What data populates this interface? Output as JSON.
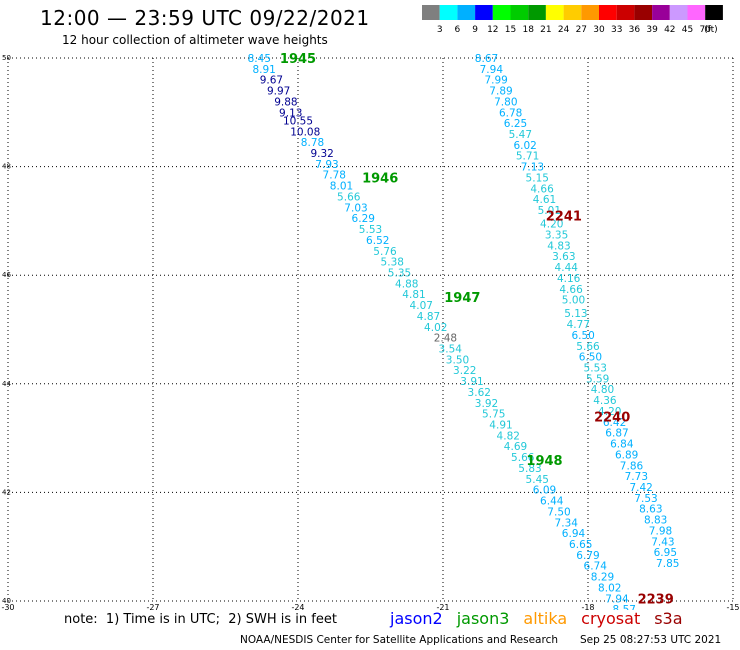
{
  "header": {
    "title": "12:00 — 23:59 UTC 09/22/2021",
    "subtitle": "12 hour collection of altimeter wave heights"
  },
  "legend": {
    "unit": "(ft)",
    "bins": [
      {
        "label": "3",
        "color": "#7f7f7f"
      },
      {
        "label": "6",
        "color": "#00ffff"
      },
      {
        "label": "9",
        "color": "#00b0ff"
      },
      {
        "label": "12",
        "color": "#0000ff"
      },
      {
        "label": "15",
        "color": "#00ff00"
      },
      {
        "label": "18",
        "color": "#00cc00"
      },
      {
        "label": "21",
        "color": "#009900"
      },
      {
        "label": "24",
        "color": "#ffff00"
      },
      {
        "label": "27",
        "color": "#ffcc00"
      },
      {
        "label": "30",
        "color": "#ff9900"
      },
      {
        "label": "33",
        "color": "#ff0000"
      },
      {
        "label": "36",
        "color": "#cc0000"
      },
      {
        "label": "39",
        "color": "#990000"
      },
      {
        "label": "42",
        "color": "#990099"
      },
      {
        "label": "45",
        "color": "#cc99ff"
      },
      {
        "label": "70",
        "color": "#ff66ff"
      },
      {
        "label": "",
        "color": "#000000"
      }
    ]
  },
  "footer": {
    "note": "note:  1) Time is in UTC;  2) SWH is in feet",
    "missions": [
      {
        "name": "jason2",
        "color": "#0000ff"
      },
      {
        "name": "jason3",
        "color": "#009900"
      },
      {
        "name": "altika",
        "color": "#ff9900"
      },
      {
        "name": "cryosat",
        "color": "#cc0000"
      },
      {
        "name": "s3a",
        "color": "#990000"
      }
    ],
    "credit": "NOAA/NESDIS Center for Satellite Applications and Research",
    "timestamp": "Sep 25 08:27:53 UTC 2021"
  },
  "chart_data": {
    "type": "scatter",
    "xlim": [
      -30,
      -15
    ],
    "ylim": [
      40,
      50
    ],
    "xticks": [
      -30,
      -27,
      -24,
      -21,
      -18,
      -15
    ],
    "yticks": [
      40,
      42,
      44,
      46,
      48,
      50
    ],
    "grid": true,
    "time_labels": [
      {
        "text": "1945",
        "x": -24.0,
        "y": 50.0,
        "color": "#009900"
      },
      {
        "text": "1946",
        "x": -22.3,
        "y": 47.8,
        "color": "#009900"
      },
      {
        "text": "1947",
        "x": -20.6,
        "y": 45.6,
        "color": "#009900"
      },
      {
        "text": "1948",
        "x": -18.9,
        "y": 42.6,
        "color": "#009900"
      },
      {
        "text": "2241",
        "x": -18.5,
        "y": 47.1,
        "color": "#990000"
      },
      {
        "text": "2240",
        "x": -17.5,
        "y": 43.4,
        "color": "#990000"
      },
      {
        "text": "2239",
        "x": -16.6,
        "y": 40.05,
        "color": "#990000"
      }
    ],
    "series": [
      {
        "name": "jason3",
        "points": [
          {
            "x": -24.8,
            "y": 50.0,
            "v": "8.45"
          },
          {
            "x": -24.7,
            "y": 49.8,
            "v": "8.91"
          },
          {
            "x": -24.55,
            "y": 49.6,
            "v": "9.67"
          },
          {
            "x": -24.4,
            "y": 49.4,
            "v": "9.97"
          },
          {
            "x": -24.25,
            "y": 49.2,
            "v": "9.88"
          },
          {
            "x": -24.15,
            "y": 49.0,
            "v": "9.13"
          },
          {
            "x": -24.0,
            "y": 48.85,
            "v": "10.55"
          },
          {
            "x": -23.85,
            "y": 48.65,
            "v": "10.08"
          },
          {
            "x": -23.7,
            "y": 48.45,
            "v": "8.78"
          },
          {
            "x": -23.5,
            "y": 48.25,
            "v": "9.32"
          },
          {
            "x": -23.4,
            "y": 48.05,
            "v": "7.93"
          },
          {
            "x": -23.25,
            "y": 47.85,
            "v": "7.78"
          },
          {
            "x": -23.1,
            "y": 47.65,
            "v": "8.01"
          },
          {
            "x": -22.95,
            "y": 47.45,
            "v": "5.66"
          },
          {
            "x": -22.8,
            "y": 47.25,
            "v": "7.03"
          },
          {
            "x": -22.65,
            "y": 47.05,
            "v": "6.29"
          },
          {
            "x": -22.5,
            "y": 46.85,
            "v": "5.53"
          },
          {
            "x": -22.35,
            "y": 46.65,
            "v": "6.52"
          },
          {
            "x": -22.2,
            "y": 46.45,
            "v": "5.76"
          },
          {
            "x": -22.05,
            "y": 46.25,
            "v": "5.38"
          },
          {
            "x": -21.9,
            "y": 46.05,
            "v": "5.35"
          },
          {
            "x": -21.75,
            "y": 45.85,
            "v": "4.88"
          },
          {
            "x": -21.6,
            "y": 45.65,
            "v": "4.81"
          },
          {
            "x": -21.45,
            "y": 45.45,
            "v": "4.07"
          },
          {
            "x": -21.3,
            "y": 45.25,
            "v": "4.87"
          },
          {
            "x": -21.15,
            "y": 45.05,
            "v": "4.02"
          },
          {
            "x": -20.95,
            "y": 44.85,
            "v": "2.48"
          },
          {
            "x": -20.85,
            "y": 44.65,
            "v": "3.54"
          },
          {
            "x": -20.7,
            "y": 44.45,
            "v": "3.50"
          },
          {
            "x": -20.55,
            "y": 44.25,
            "v": "3.22"
          },
          {
            "x": -20.4,
            "y": 44.05,
            "v": "3.91"
          },
          {
            "x": -20.25,
            "y": 43.85,
            "v": "3.62"
          },
          {
            "x": -20.1,
            "y": 43.65,
            "v": "3.92"
          },
          {
            "x": -19.95,
            "y": 43.45,
            "v": "5.75"
          },
          {
            "x": -19.8,
            "y": 43.25,
            "v": "4.91"
          },
          {
            "x": -19.65,
            "y": 43.05,
            "v": "4.82"
          },
          {
            "x": -19.5,
            "y": 42.85,
            "v": "4.69"
          },
          {
            "x": -19.35,
            "y": 42.65,
            "v": "5.66"
          },
          {
            "x": -19.2,
            "y": 42.45,
            "v": "5.83"
          },
          {
            "x": -19.05,
            "y": 42.25,
            "v": "5.45"
          },
          {
            "x": -18.9,
            "y": 42.05,
            "v": "6.09"
          },
          {
            "x": -18.75,
            "y": 41.85,
            "v": "6.44"
          },
          {
            "x": -18.6,
            "y": 41.65,
            "v": "7.50"
          },
          {
            "x": -18.45,
            "y": 41.45,
            "v": "7.34"
          },
          {
            "x": -18.3,
            "y": 41.25,
            "v": "6.94"
          },
          {
            "x": -18.15,
            "y": 41.05,
            "v": "6.65"
          },
          {
            "x": -18.0,
            "y": 40.85,
            "v": "6.79"
          },
          {
            "x": -17.85,
            "y": 40.65,
            "v": "6.74"
          },
          {
            "x": -17.7,
            "y": 40.45,
            "v": "8.29"
          },
          {
            "x": -17.55,
            "y": 40.25,
            "v": "8.02"
          },
          {
            "x": -17.4,
            "y": 40.05,
            "v": "7.94"
          },
          {
            "x": -17.25,
            "y": 39.85,
            "v": "8.57"
          }
        ]
      },
      {
        "name": "s3a",
        "points": [
          {
            "x": -20.1,
            "y": 50.0,
            "v": "8.67"
          },
          {
            "x": -20.0,
            "y": 49.8,
            "v": "7.94"
          },
          {
            "x": -19.9,
            "y": 49.6,
            "v": "7.99"
          },
          {
            "x": -19.8,
            "y": 49.4,
            "v": "7.89"
          },
          {
            "x": -19.7,
            "y": 49.2,
            "v": "7.80"
          },
          {
            "x": -19.6,
            "y": 49.0,
            "v": "6.78"
          },
          {
            "x": -19.5,
            "y": 48.8,
            "v": "6.25"
          },
          {
            "x": -19.4,
            "y": 48.6,
            "v": "5.47"
          },
          {
            "x": -19.3,
            "y": 48.4,
            "v": "6.02"
          },
          {
            "x": -19.25,
            "y": 48.2,
            "v": "5.71"
          },
          {
            "x": -19.15,
            "y": 48.0,
            "v": "7.13"
          },
          {
            "x": -19.05,
            "y": 47.8,
            "v": "5.15"
          },
          {
            "x": -18.95,
            "y": 47.6,
            "v": "4.66"
          },
          {
            "x": -18.9,
            "y": 47.4,
            "v": "4.61"
          },
          {
            "x": -18.8,
            "y": 47.2,
            "v": "5.01"
          },
          {
            "x": -18.75,
            "y": 46.95,
            "v": "4.20"
          },
          {
            "x": -18.65,
            "y": 46.75,
            "v": "3.35"
          },
          {
            "x": -18.6,
            "y": 46.55,
            "v": "4.83"
          },
          {
            "x": -18.5,
            "y": 46.35,
            "v": "3.63"
          },
          {
            "x": -18.45,
            "y": 46.15,
            "v": "4.44"
          },
          {
            "x": -18.4,
            "y": 45.95,
            "v": "4.16"
          },
          {
            "x": -18.35,
            "y": 45.75,
            "v": "4.66"
          },
          {
            "x": -18.3,
            "y": 45.55,
            "v": "5.00"
          },
          {
            "x": -18.25,
            "y": 45.3,
            "v": "5.13"
          },
          {
            "x": -18.2,
            "y": 45.1,
            "v": "4.77"
          },
          {
            "x": -18.1,
            "y": 44.9,
            "v": "6.50"
          },
          {
            "x": -18.0,
            "y": 44.7,
            "v": "5.66"
          },
          {
            "x": -17.95,
            "y": 44.5,
            "v": "6.50"
          },
          {
            "x": -17.85,
            "y": 44.3,
            "v": "5.53"
          },
          {
            "x": -17.8,
            "y": 44.1,
            "v": "5.59"
          },
          {
            "x": -17.7,
            "y": 43.9,
            "v": "4.80"
          },
          {
            "x": -17.65,
            "y": 43.7,
            "v": "4.36"
          },
          {
            "x": -17.55,
            "y": 43.5,
            "v": "4.20"
          },
          {
            "x": -17.45,
            "y": 43.3,
            "v": "6.42"
          },
          {
            "x": -17.4,
            "y": 43.1,
            "v": "6.87"
          },
          {
            "x": -17.3,
            "y": 42.9,
            "v": "6.84"
          },
          {
            "x": -17.2,
            "y": 42.7,
            "v": "6.89"
          },
          {
            "x": -17.1,
            "y": 42.5,
            "v": "7.86"
          },
          {
            "x": -17.0,
            "y": 42.3,
            "v": "7.73"
          },
          {
            "x": -16.9,
            "y": 42.1,
            "v": "7.42"
          },
          {
            "x": -16.8,
            "y": 41.9,
            "v": "7.53"
          },
          {
            "x": -16.7,
            "y": 41.7,
            "v": "8.63"
          },
          {
            "x": -16.6,
            "y": 41.5,
            "v": "8.83"
          },
          {
            "x": -16.5,
            "y": 41.3,
            "v": "7.98"
          },
          {
            "x": -16.45,
            "y": 41.1,
            "v": "7.43"
          },
          {
            "x": -16.4,
            "y": 40.9,
            "v": "6.95"
          },
          {
            "x": -16.35,
            "y": 40.7,
            "v": "7.85"
          }
        ]
      }
    ]
  }
}
